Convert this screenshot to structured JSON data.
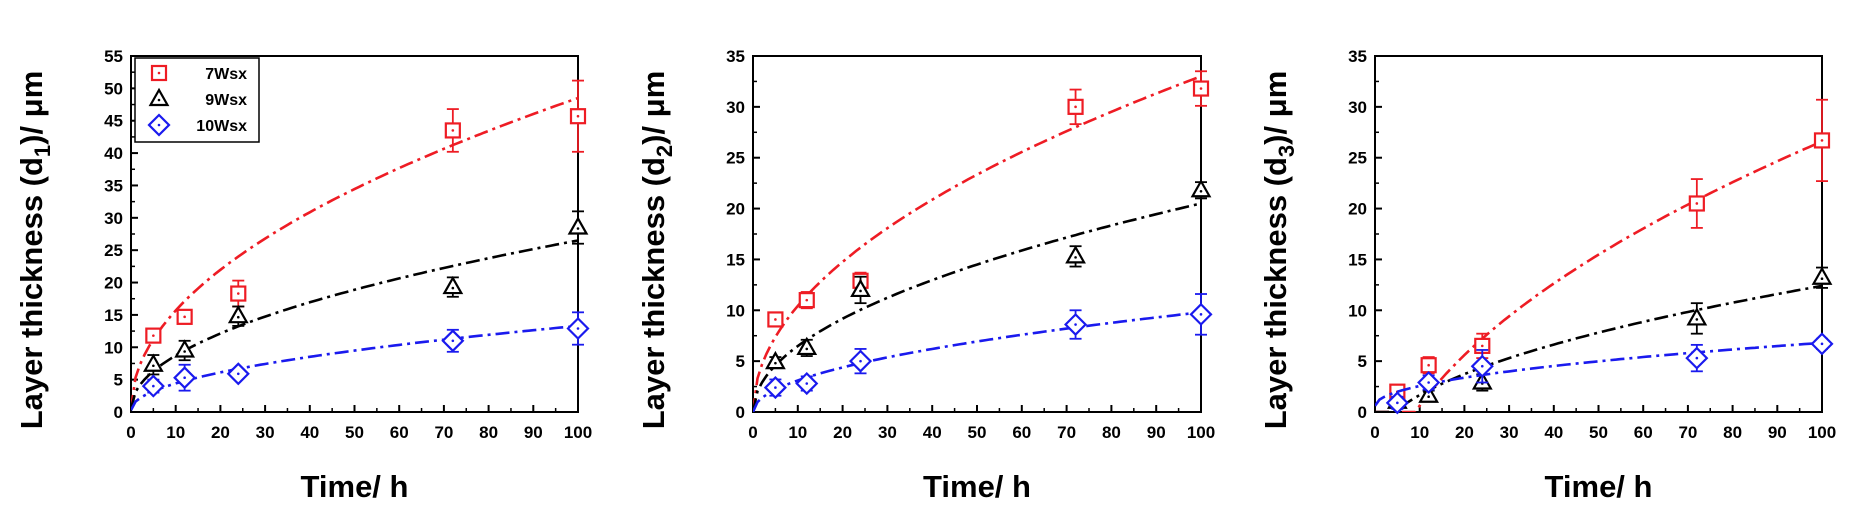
{
  "colors": {
    "7Wsx": "#ee1c24",
    "9Wsx": "#000000",
    "10Wsx": "#1a1aee"
  },
  "markers": {
    "7Wsx": "square",
    "9Wsx": "triangle",
    "10Wsx": "diamond"
  },
  "chart_data": [
    {
      "type": "scatter",
      "ylabel_main": "Layer thickness (d",
      "ylabel_sub": "1",
      "ylabel_tail": ")/ μm",
      "xlabel": "Time/ h",
      "xlim": [
        0,
        100
      ],
      "ylim": [
        0,
        55
      ],
      "xticks": [
        0,
        10,
        20,
        30,
        40,
        50,
        60,
        70,
        80,
        90,
        100
      ],
      "yticks": [
        0,
        5,
        10,
        15,
        20,
        25,
        30,
        35,
        40,
        45,
        50,
        55
      ],
      "legend": {
        "position": "top-left",
        "entries": [
          "7Wsx",
          "9Wsx",
          "10Wsx"
        ]
      },
      "series": [
        {
          "name": "7Wsx",
          "x": [
            5,
            12,
            24,
            72,
            100
          ],
          "y": [
            11.8,
            14.7,
            18.3,
            43.5,
            45.7
          ],
          "err": [
            1.0,
            0.8,
            2.0,
            3.3,
            5.5
          ],
          "fit_k": 4.8,
          "fit_b": 0.5
        },
        {
          "name": "9Wsx",
          "x": [
            5,
            12,
            24,
            72,
            100
          ],
          "y": [
            7.3,
            9.5,
            14.8,
            19.3,
            28.5
          ],
          "err": [
            1.5,
            1.5,
            1.5,
            1.5,
            2.5
          ],
          "fit_k": 2.6,
          "fit_b": 0.5
        },
        {
          "name": "10Wsx",
          "x": [
            5,
            12,
            24,
            72,
            100
          ],
          "y": [
            4.0,
            5.3,
            5.9,
            11.0,
            12.9
          ],
          "err": [
            1.0,
            2.0,
            0.7,
            1.7,
            2.5
          ],
          "fit_k": 1.3,
          "fit_b": 0.3
        }
      ]
    },
    {
      "type": "scatter",
      "ylabel_main": "Layer thickness (d",
      "ylabel_sub": "2",
      "ylabel_tail": ")/ μm",
      "xlabel": "Time/ h",
      "xlim": [
        0,
        100
      ],
      "ylim": [
        0,
        35
      ],
      "xticks": [
        0,
        10,
        20,
        30,
        40,
        50,
        60,
        70,
        80,
        90,
        100
      ],
      "yticks": [
        0,
        5,
        10,
        15,
        20,
        25,
        30,
        35
      ],
      "series": [
        {
          "name": "7Wsx",
          "x": [
            5,
            12,
            24,
            72,
            100
          ],
          "y": [
            9.1,
            11.0,
            12.9,
            30.0,
            31.8
          ],
          "err": [
            0.5,
            0.8,
            0.8,
            1.7,
            1.7
          ],
          "fit_k": 3.3,
          "fit_b": 0
        },
        {
          "name": "9Wsx",
          "x": [
            5,
            12,
            24,
            72,
            100
          ],
          "y": [
            4.9,
            6.3,
            12.0,
            15.3,
            21.8
          ],
          "err": [
            0.5,
            0.8,
            1.3,
            1.0,
            0.8
          ],
          "fit_k": 2.05,
          "fit_b": 0
        },
        {
          "name": "10Wsx",
          "x": [
            5,
            12,
            24,
            72,
            100
          ],
          "y": [
            2.4,
            2.8,
            5.0,
            8.6,
            9.6
          ],
          "err": [
            0.8,
            0.7,
            1.2,
            1.4,
            2.0
          ],
          "fit_k": 0.98,
          "fit_b": 0
        }
      ]
    },
    {
      "type": "scatter",
      "ylabel_main": "Layer thickness (d",
      "ylabel_sub": "3",
      "ylabel_tail": ")/ μm",
      "xlabel": "Time/ h",
      "xlim": [
        0,
        100
      ],
      "ylim": [
        0,
        35
      ],
      "xticks": [
        0,
        10,
        20,
        30,
        40,
        50,
        60,
        70,
        80,
        90,
        100
      ],
      "yticks": [
        0,
        5,
        10,
        15,
        20,
        25,
        30,
        35
      ],
      "series": [
        {
          "name": "7Wsx",
          "x": [
            5,
            12,
            24,
            72,
            100
          ],
          "y": [
            2.0,
            4.6,
            6.5,
            20.5,
            26.7
          ],
          "err": [
            0.5,
            0.8,
            1.2,
            2.4,
            4.0
          ],
          "fit_k": 3.8,
          "fit_b": -11.4
        },
        {
          "name": "9Wsx",
          "x": [
            5,
            12,
            24,
            72,
            100
          ],
          "y": [
            1.0,
            1.6,
            2.9,
            9.2,
            13.2
          ],
          "err": [
            0.4,
            0.5,
            0.8,
            1.5,
            1.0
          ],
          "fit_k": 1.57,
          "fit_b": -3.3
        },
        {
          "name": "10Wsx",
          "x": [
            5,
            12,
            24,
            72,
            100
          ],
          "y": [
            0.9,
            2.9,
            4.5,
            5.3,
            6.7
          ],
          "err": [
            0.6,
            0.7,
            1.6,
            1.3,
            0.5
          ],
          "fit_k": 0.62,
          "fit_b": 0.6
        }
      ]
    }
  ]
}
